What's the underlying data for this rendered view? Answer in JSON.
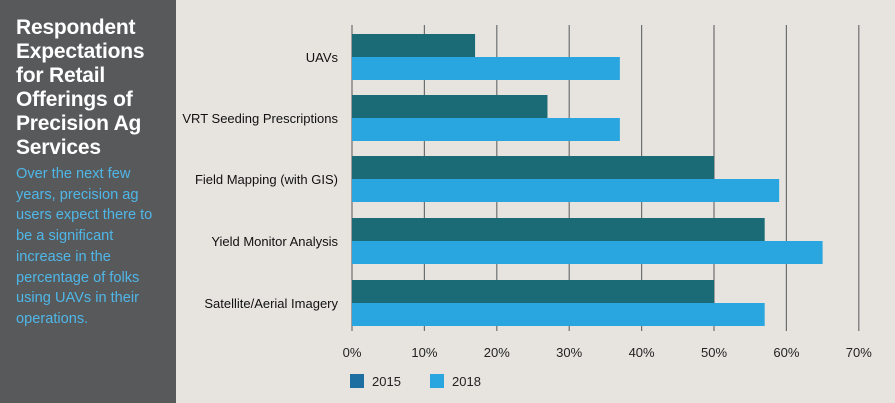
{
  "sidebar": {
    "title": "Respondent Expectations for Retail Offerings of Precision Ag Services",
    "description": "Over the next few years, precision ag users expect there to be a significant increase in the percentage of folks using UAVs in their operations."
  },
  "colors": {
    "background": "#e7e4df",
    "sidebar": "#58595b",
    "series_2015": "#1a6b75",
    "series_2018": "#29a6e0",
    "legend_2015": "#1c6fa0",
    "legend_2018": "#29a6e0",
    "grid": "#6d6e71"
  },
  "chart_data": {
    "type": "bar",
    "orientation": "horizontal",
    "categories": [
      "UAVs",
      "VRT Seeding Prescriptions",
      "Field Mapping (with GIS)",
      "Yield Monitor Analysis",
      "Satellite/Aerial Imagery"
    ],
    "series": [
      {
        "name": "2015",
        "values": [
          17,
          27,
          50,
          57,
          50
        ]
      },
      {
        "name": "2018",
        "values": [
          37,
          37,
          59,
          65,
          57
        ]
      }
    ],
    "xlim": [
      0,
      70
    ],
    "ticks": [
      0,
      10,
      20,
      30,
      40,
      50,
      60,
      70
    ],
    "tick_labels": [
      "0%",
      "10%",
      "20%",
      "30%",
      "40%",
      "50%",
      "60%",
      "70%"
    ],
    "legend_position": "bottom-left",
    "grid": true
  }
}
